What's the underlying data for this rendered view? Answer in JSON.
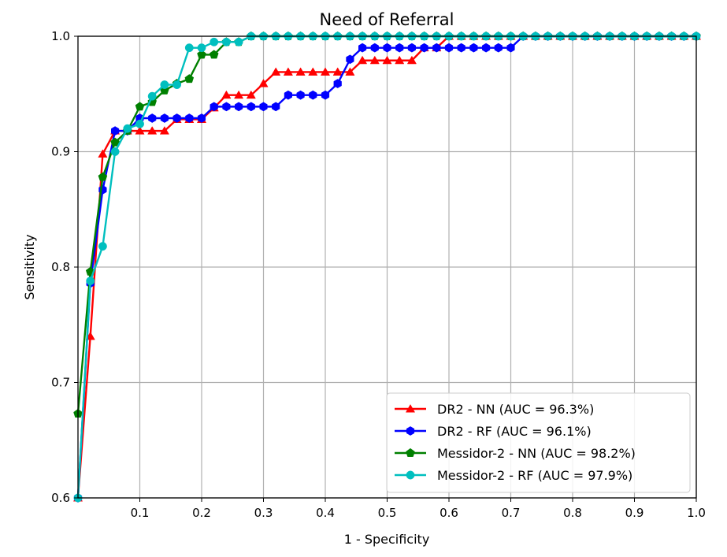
{
  "chart_data": {
    "type": "line",
    "title": "Need of Referral",
    "xlabel": "1 - Specificity",
    "ylabel": "Sensitivity",
    "xlim": [
      0.0,
      1.0
    ],
    "ylim": [
      0.6,
      1.0
    ],
    "x_ticks": [
      0.1,
      0.2,
      0.3,
      0.4,
      0.5,
      0.6,
      0.7,
      0.8,
      0.9,
      1.0
    ],
    "x_tick_labels": [
      "0.1",
      "0.2",
      "0.3",
      "0.4",
      "0.5",
      "0.6",
      "0.7",
      "0.8",
      "0.9",
      "1.0"
    ],
    "y_ticks": [
      0.6,
      0.7,
      0.8,
      0.9,
      1.0
    ],
    "y_tick_labels": [
      "0.6",
      "0.7",
      "0.8",
      "0.9",
      "1.0"
    ],
    "grid": true,
    "legend_position": "lower-right",
    "series": [
      {
        "name": "DR2 - NN (AUC = 96.3%)",
        "color": "#ff0000",
        "marker": "triangle",
        "x": [
          0.0,
          0.02,
          0.04,
          0.06,
          0.08,
          0.1,
          0.12,
          0.14,
          0.16,
          0.18,
          0.2,
          0.22,
          0.24,
          0.26,
          0.28,
          0.3,
          0.32,
          0.34,
          0.36,
          0.38,
          0.4,
          0.42,
          0.44,
          0.46,
          0.48,
          0.5,
          0.52,
          0.54,
          0.56,
          0.58,
          0.6,
          0.62,
          0.64,
          0.66,
          0.68,
          0.7,
          0.72,
          0.74,
          0.76,
          0.78,
          0.8,
          0.82,
          0.84,
          0.86,
          0.88,
          0.9,
          0.92,
          0.94,
          0.96,
          0.98,
          1.0
        ],
        "y": [
          0.6,
          0.74,
          0.898,
          0.918,
          0.918,
          0.918,
          0.918,
          0.918,
          0.928,
          0.928,
          0.928,
          0.938,
          0.949,
          0.949,
          0.949,
          0.959,
          0.969,
          0.969,
          0.969,
          0.969,
          0.969,
          0.969,
          0.969,
          0.979,
          0.979,
          0.979,
          0.979,
          0.979,
          0.99,
          0.99,
          1.0,
          1.0,
          1.0,
          1.0,
          1.0,
          1.0,
          1.0,
          1.0,
          1.0,
          1.0,
          1.0,
          1.0,
          1.0,
          1.0,
          1.0,
          1.0,
          1.0,
          1.0,
          1.0,
          1.0,
          1.0
        ]
      },
      {
        "name": "DR2 - RF (AUC = 96.1%)",
        "color": "#0000ff",
        "marker": "hexagon",
        "x": [
          0.0,
          0.02,
          0.04,
          0.06,
          0.08,
          0.1,
          0.12,
          0.14,
          0.16,
          0.18,
          0.2,
          0.22,
          0.24,
          0.26,
          0.28,
          0.3,
          0.32,
          0.34,
          0.36,
          0.38,
          0.4,
          0.42,
          0.44,
          0.46,
          0.48,
          0.5,
          0.52,
          0.54,
          0.56,
          0.58,
          0.6,
          0.62,
          0.64,
          0.66,
          0.68,
          0.7,
          0.72,
          0.74,
          0.76,
          0.78,
          0.8,
          0.82,
          0.84,
          0.86,
          0.88,
          0.9,
          0.92,
          0.94,
          0.96,
          0.98,
          1.0
        ],
        "y": [
          0.6,
          0.786,
          0.867,
          0.918,
          0.918,
          0.929,
          0.929,
          0.929,
          0.929,
          0.929,
          0.929,
          0.939,
          0.939,
          0.939,
          0.939,
          0.939,
          0.939,
          0.949,
          0.949,
          0.949,
          0.949,
          0.959,
          0.98,
          0.99,
          0.99,
          0.99,
          0.99,
          0.99,
          0.99,
          0.99,
          0.99,
          0.99,
          0.99,
          0.99,
          0.99,
          0.99,
          1.0,
          1.0,
          1.0,
          1.0,
          1.0,
          1.0,
          1.0,
          1.0,
          1.0,
          1.0,
          1.0,
          1.0,
          1.0,
          1.0,
          1.0
        ]
      },
      {
        "name": "Messidor-2 - NN (AUC = 98.2%)",
        "color": "#008000",
        "marker": "pentagon",
        "x": [
          0.0,
          0.02,
          0.04,
          0.06,
          0.08,
          0.1,
          0.12,
          0.14,
          0.16,
          0.18,
          0.2,
          0.22,
          0.24,
          0.26,
          0.28,
          0.3,
          0.32,
          0.34,
          0.36,
          0.38,
          0.4,
          0.42,
          0.44,
          0.46,
          0.48,
          0.5,
          0.52,
          0.54,
          0.56,
          0.58,
          0.6,
          0.62,
          0.64,
          0.66,
          0.68,
          0.7,
          0.72,
          0.74,
          0.76,
          0.78,
          0.8,
          0.82,
          0.84,
          0.86,
          0.88,
          0.9,
          0.92,
          0.94,
          0.96,
          0.98,
          1.0
        ],
        "y": [
          0.673,
          0.796,
          0.878,
          0.908,
          0.918,
          0.939,
          0.943,
          0.953,
          0.959,
          0.963,
          0.984,
          0.984,
          0.995,
          0.995,
          1.0,
          1.0,
          1.0,
          1.0,
          1.0,
          1.0,
          1.0,
          1.0,
          1.0,
          1.0,
          1.0,
          1.0,
          1.0,
          1.0,
          1.0,
          1.0,
          1.0,
          1.0,
          1.0,
          1.0,
          1.0,
          1.0,
          1.0,
          1.0,
          1.0,
          1.0,
          1.0,
          1.0,
          1.0,
          1.0,
          1.0,
          1.0,
          1.0,
          1.0,
          1.0,
          1.0,
          1.0
        ]
      },
      {
        "name": "Messidor-2 - RF (AUC = 97.9%)",
        "color": "#00bfbf",
        "marker": "circle",
        "x": [
          0.0,
          0.02,
          0.04,
          0.06,
          0.08,
          0.1,
          0.12,
          0.14,
          0.16,
          0.18,
          0.2,
          0.22,
          0.24,
          0.26,
          0.28,
          0.3,
          0.32,
          0.34,
          0.36,
          0.38,
          0.4,
          0.42,
          0.44,
          0.46,
          0.48,
          0.5,
          0.52,
          0.54,
          0.56,
          0.58,
          0.6,
          0.62,
          0.64,
          0.66,
          0.68,
          0.7,
          0.72,
          0.74,
          0.76,
          0.78,
          0.8,
          0.82,
          0.84,
          0.86,
          0.88,
          0.9,
          0.92,
          0.94,
          0.96,
          0.98,
          1.0
        ],
        "y": [
          0.6,
          0.788,
          0.818,
          0.9,
          0.92,
          0.924,
          0.948,
          0.958,
          0.958,
          0.99,
          0.99,
          0.995,
          0.995,
          0.995,
          1.0,
          1.0,
          1.0,
          1.0,
          1.0,
          1.0,
          1.0,
          1.0,
          1.0,
          1.0,
          1.0,
          1.0,
          1.0,
          1.0,
          1.0,
          1.0,
          1.0,
          1.0,
          1.0,
          1.0,
          1.0,
          1.0,
          1.0,
          1.0,
          1.0,
          1.0,
          1.0,
          1.0,
          1.0,
          1.0,
          1.0,
          1.0,
          1.0,
          1.0,
          1.0,
          1.0,
          1.0
        ]
      }
    ]
  }
}
